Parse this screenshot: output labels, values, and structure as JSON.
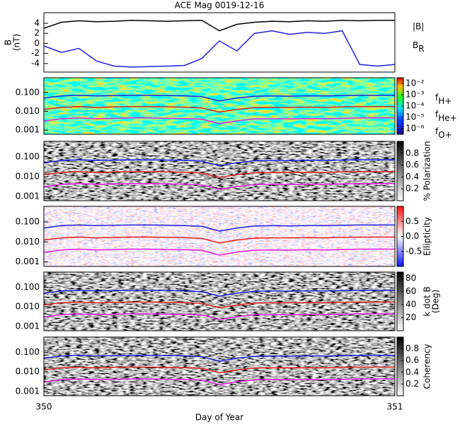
{
  "chart_data": [
    {
      "type": "line",
      "title": "ACE Mag 0019-12-16",
      "ylabel": [
        "B",
        "(nT)"
      ],
      "xlim": [
        350,
        351
      ],
      "ylim": [
        -5.7,
        6.1
      ],
      "yticks": [
        4,
        2,
        0,
        -2,
        -4
      ],
      "legend_style": "subscript",
      "x": [
        350,
        350.05,
        350.1,
        350.15,
        350.2,
        350.25,
        350.3,
        350.35,
        350.4,
        350.45,
        350.5,
        350.55,
        350.6,
        350.65,
        350.7,
        350.75,
        350.8,
        350.85,
        350.9,
        350.95,
        351
      ],
      "series": [
        {
          "name": "|B|",
          "color": "#000000",
          "values": [
            3.0,
            4.2,
            4.5,
            4.3,
            4.4,
            4.6,
            4.5,
            4.4,
            4.5,
            4.6,
            2.5,
            3.8,
            4.2,
            4.4,
            4.3,
            4.5,
            4.4,
            4.6,
            4.5,
            4.6,
            4.6
          ]
        },
        {
          "name": "BR",
          "color": "#2020e0",
          "values": [
            -0.5,
            -1.8,
            -1.0,
            -3.5,
            -4.5,
            -4.7,
            -4.6,
            -4.5,
            -4.4,
            -3.0,
            0.5,
            -1.5,
            2.0,
            2.5,
            1.8,
            2.2,
            2.0,
            2.5,
            -4.2,
            -4.5,
            -4.2
          ]
        }
      ]
    },
    {
      "type": "line",
      "log": true,
      "spectrogram": "rainbow",
      "legend_style": "subscript",
      "xlim": [
        350,
        351
      ],
      "ylim": [
        0.0006,
        0.6
      ],
      "yticks": [
        {
          "value": 0.1,
          "label": "0.100"
        },
        {
          "value": 0.01,
          "label": "0.010"
        },
        {
          "value": 0.001,
          "label": "0.001"
        }
      ],
      "cbar_lim": [
        -6.5,
        -1.5
      ],
      "cbar_ticks": [
        {
          "value": -2,
          "label": "10⁻²"
        },
        {
          "value": -3,
          "label": "10⁻³"
        },
        {
          "value": -4,
          "label": "10⁻⁴"
        },
        {
          "value": -5,
          "label": "10⁻⁵"
        },
        {
          "value": -6,
          "label": "10⁻⁶"
        }
      ],
      "x": [
        350,
        350.05,
        350.1,
        350.15,
        350.2,
        350.25,
        350.3,
        350.35,
        350.4,
        350.45,
        350.5,
        350.55,
        350.6,
        350.65,
        350.7,
        350.75,
        350.8,
        350.85,
        350.9,
        350.95,
        351
      ],
      "series": [
        {
          "name": "fH+",
          "color": "#2020e0",
          "values": [
            0.05,
            0.065,
            0.07,
            0.065,
            0.068,
            0.07,
            0.07,
            0.068,
            0.066,
            0.06,
            0.035,
            0.05,
            0.062,
            0.065,
            0.063,
            0.066,
            0.065,
            0.068,
            0.07,
            0.07,
            0.07
          ]
        },
        {
          "name": "fHe+",
          "color": "#e02020",
          "values": [
            0.0125,
            0.016,
            0.0175,
            0.016,
            0.017,
            0.0175,
            0.0175,
            0.017,
            0.0165,
            0.015,
            0.009,
            0.0125,
            0.0155,
            0.016,
            0.016,
            0.0165,
            0.016,
            0.017,
            0.0175,
            0.0175,
            0.0175
          ]
        },
        {
          "name": "fO+",
          "color": "#e020e0",
          "values": [
            0.003,
            0.004,
            0.0044,
            0.004,
            0.0042,
            0.0044,
            0.0044,
            0.0042,
            0.0041,
            0.0038,
            0.0022,
            0.0031,
            0.0039,
            0.004,
            0.0039,
            0.0041,
            0.004,
            0.0042,
            0.0044,
            0.0044,
            0.0044
          ]
        }
      ]
    },
    {
      "type": "line",
      "log": true,
      "spectrogram": "gray",
      "xlim": [
        350,
        351
      ],
      "ylim": [
        0.0006,
        0.6
      ],
      "yticks": [
        {
          "value": 0.1,
          "label": "0.100"
        },
        {
          "value": 0.01,
          "label": "0.010"
        },
        {
          "value": 0.001,
          "label": "0.001"
        }
      ],
      "cbar_lim": [
        0,
        1
      ],
      "cbar_ticks": [
        0.8,
        0.6,
        0.4,
        0.2
      ],
      "cbar_label": [
        "% Polarization"
      ],
      "x": [
        350,
        350.05,
        350.1,
        350.15,
        350.2,
        350.25,
        350.3,
        350.35,
        350.4,
        350.45,
        350.5,
        350.55,
        350.6,
        350.65,
        350.7,
        350.75,
        350.8,
        350.85,
        350.9,
        350.95,
        351
      ],
      "series": [
        {
          "color": "#2020e0",
          "values": [
            0.05,
            0.065,
            0.07,
            0.065,
            0.068,
            0.07,
            0.07,
            0.068,
            0.066,
            0.06,
            0.035,
            0.05,
            0.062,
            0.065,
            0.063,
            0.066,
            0.065,
            0.068,
            0.07,
            0.07,
            0.07
          ]
        },
        {
          "color": "#e02020",
          "values": [
            0.0125,
            0.016,
            0.0175,
            0.016,
            0.017,
            0.0175,
            0.0175,
            0.017,
            0.0165,
            0.015,
            0.009,
            0.0125,
            0.0155,
            0.016,
            0.016,
            0.0165,
            0.016,
            0.017,
            0.0175,
            0.0175,
            0.0175
          ]
        },
        {
          "color": "#e020e0",
          "values": [
            0.003,
            0.004,
            0.0044,
            0.004,
            0.0042,
            0.0044,
            0.0044,
            0.0042,
            0.0041,
            0.0038,
            0.0022,
            0.0031,
            0.0039,
            0.004,
            0.0039,
            0.0041,
            0.004,
            0.0042,
            0.0044,
            0.0044,
            0.0044
          ]
        }
      ]
    },
    {
      "type": "line",
      "log": true,
      "spectrogram": "bwr",
      "xlim": [
        350,
        351
      ],
      "ylim": [
        0.0006,
        0.6
      ],
      "yticks": [
        {
          "value": 0.1,
          "label": "0.100"
        },
        {
          "value": 0.01,
          "label": "0.010"
        },
        {
          "value": 0.001,
          "label": "0.001"
        }
      ],
      "cbar_lim": [
        -1,
        1
      ],
      "cbar_ticks": [
        0.5,
        {
          "value": 0,
          "label": "0.0"
        },
        -0.5
      ],
      "cbar_label": [
        "Ellipticity"
      ],
      "x": [
        350,
        350.05,
        350.1,
        350.15,
        350.2,
        350.25,
        350.3,
        350.35,
        350.4,
        350.45,
        350.5,
        350.55,
        350.6,
        350.65,
        350.7,
        350.75,
        350.8,
        350.85,
        350.9,
        350.95,
        351
      ],
      "series": [
        {
          "color": "#2020e0",
          "values": [
            0.05,
            0.065,
            0.07,
            0.065,
            0.068,
            0.07,
            0.07,
            0.068,
            0.066,
            0.06,
            0.035,
            0.05,
            0.062,
            0.065,
            0.063,
            0.066,
            0.065,
            0.068,
            0.07,
            0.07,
            0.07
          ]
        },
        {
          "color": "#e02020",
          "values": [
            0.0125,
            0.016,
            0.0175,
            0.016,
            0.017,
            0.0175,
            0.0175,
            0.017,
            0.0165,
            0.015,
            0.009,
            0.0125,
            0.0155,
            0.016,
            0.016,
            0.0165,
            0.016,
            0.017,
            0.0175,
            0.0175,
            0.0175
          ]
        },
        {
          "color": "#e020e0",
          "values": [
            0.003,
            0.004,
            0.0044,
            0.004,
            0.0042,
            0.0044,
            0.0044,
            0.0042,
            0.0041,
            0.0038,
            0.0022,
            0.0031,
            0.0039,
            0.004,
            0.0039,
            0.0041,
            0.004,
            0.0042,
            0.0044,
            0.0044,
            0.0044
          ]
        }
      ]
    },
    {
      "type": "line",
      "log": true,
      "spectrogram": "gray",
      "xlim": [
        350,
        351
      ],
      "ylim": [
        0.0006,
        0.6
      ],
      "yticks": [
        {
          "value": 0.1,
          "label": "0.100"
        },
        {
          "value": 0.01,
          "label": "0.010"
        },
        {
          "value": 0.001,
          "label": "0.001"
        }
      ],
      "cbar_lim": [
        0,
        90
      ],
      "cbar_ticks": [
        80,
        60,
        40,
        20
      ],
      "cbar_label": [
        "k dot B",
        "(Deg)"
      ],
      "x": [
        350,
        350.05,
        350.1,
        350.15,
        350.2,
        350.25,
        350.3,
        350.35,
        350.4,
        350.45,
        350.5,
        350.55,
        350.6,
        350.65,
        350.7,
        350.75,
        350.8,
        350.85,
        350.9,
        350.95,
        351
      ],
      "series": [
        {
          "color": "#2020e0",
          "values": [
            0.05,
            0.065,
            0.07,
            0.065,
            0.068,
            0.07,
            0.07,
            0.068,
            0.066,
            0.06,
            0.035,
            0.05,
            0.062,
            0.065,
            0.063,
            0.066,
            0.065,
            0.068,
            0.07,
            0.07,
            0.07
          ]
        },
        {
          "color": "#e02020",
          "values": [
            0.0125,
            0.016,
            0.0175,
            0.016,
            0.017,
            0.0175,
            0.0175,
            0.017,
            0.0165,
            0.015,
            0.009,
            0.0125,
            0.0155,
            0.016,
            0.016,
            0.0165,
            0.016,
            0.017,
            0.0175,
            0.0175,
            0.0175
          ]
        },
        {
          "color": "#e020e0",
          "values": [
            0.003,
            0.004,
            0.0044,
            0.004,
            0.0042,
            0.0044,
            0.0044,
            0.0042,
            0.0041,
            0.0038,
            0.0022,
            0.0031,
            0.0039,
            0.004,
            0.0039,
            0.0041,
            0.004,
            0.0042,
            0.0044,
            0.0044,
            0.0044
          ]
        }
      ]
    },
    {
      "type": "line",
      "log": true,
      "spectrogram": "gray",
      "xlim": [
        350,
        351
      ],
      "ylim": [
        0.0006,
        0.6
      ],
      "xticks": [
        350,
        351
      ],
      "xlabel": "Day of Year",
      "yticks": [
        {
          "value": 0.1,
          "label": "0.100"
        },
        {
          "value": 0.01,
          "label": "0.010"
        },
        {
          "value": 0.001,
          "label": "0.001"
        }
      ],
      "cbar_lim": [
        0,
        1
      ],
      "cbar_ticks": [
        0.8,
        0.6,
        0.4,
        0.2
      ],
      "cbar_label": [
        "Coherency"
      ],
      "x": [
        350,
        350.05,
        350.1,
        350.15,
        350.2,
        350.25,
        350.3,
        350.35,
        350.4,
        350.45,
        350.5,
        350.55,
        350.6,
        350.65,
        350.7,
        350.75,
        350.8,
        350.85,
        350.9,
        350.95,
        351
      ],
      "series": [
        {
          "color": "#2020e0",
          "values": [
            0.05,
            0.065,
            0.07,
            0.065,
            0.068,
            0.07,
            0.07,
            0.068,
            0.066,
            0.06,
            0.035,
            0.05,
            0.062,
            0.065,
            0.063,
            0.066,
            0.065,
            0.068,
            0.07,
            0.07,
            0.07
          ]
        },
        {
          "color": "#e02020",
          "values": [
            0.0125,
            0.016,
            0.0175,
            0.016,
            0.017,
            0.0175,
            0.0175,
            0.017,
            0.0165,
            0.015,
            0.009,
            0.0125,
            0.0155,
            0.016,
            0.016,
            0.0165,
            0.016,
            0.017,
            0.0175,
            0.0175,
            0.0175
          ]
        },
        {
          "color": "#e020e0",
          "values": [
            0.003,
            0.004,
            0.0044,
            0.004,
            0.0042,
            0.0044,
            0.0044,
            0.0042,
            0.0041,
            0.0038,
            0.0022,
            0.0031,
            0.0039,
            0.004,
            0.0039,
            0.0041,
            0.004,
            0.0042,
            0.0044,
            0.0044,
            0.0044
          ]
        }
      ]
    }
  ]
}
